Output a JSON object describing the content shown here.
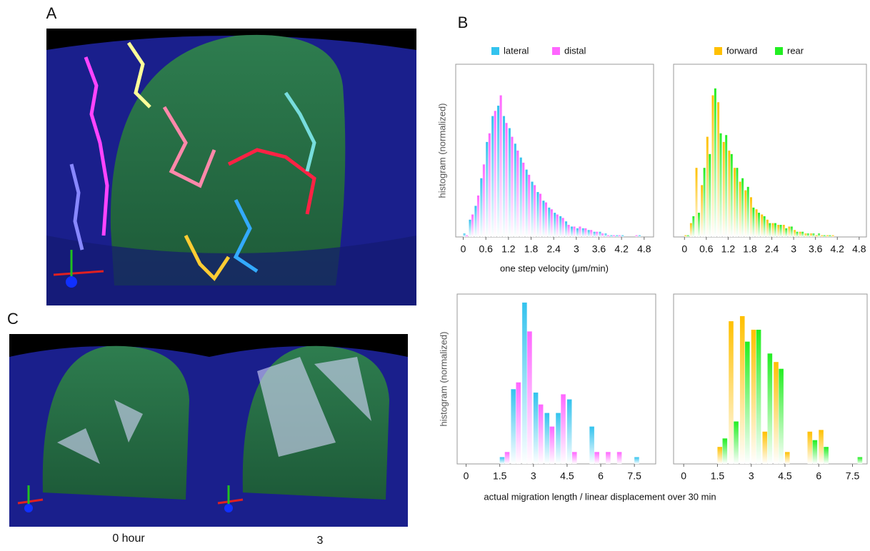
{
  "figure": {
    "panel_a": "A",
    "panel_b": "B",
    "panel_c": "C",
    "captions": [
      "0 hour",
      "3"
    ]
  },
  "chart_data": [
    {
      "type": "bar",
      "ylabel": "histogram (normalized)",
      "xlabel": "one step velocity (μm/min)",
      "x": [
        0,
        0.15,
        0.3,
        0.45,
        0.6,
        0.75,
        0.9,
        1.05,
        1.2,
        1.35,
        1.5,
        1.65,
        1.8,
        1.95,
        2.1,
        2.25,
        2.4,
        2.55,
        2.7,
        2.85,
        3,
        3.15,
        3.3,
        3.45,
        3.6,
        3.75,
        3.9,
        4.05,
        4.2,
        4.35,
        4.5,
        4.65,
        4.8
      ],
      "series": [
        {
          "name": "lateral",
          "color": "#33c3ee",
          "values": [
            2,
            10,
            18,
            34,
            55,
            70,
            76,
            70,
            63,
            54,
            46,
            39,
            32,
            26,
            21,
            17,
            14,
            12,
            9,
            6,
            5,
            5,
            4,
            3,
            3,
            2,
            1,
            1,
            1,
            0,
            0,
            1,
            0
          ]
        },
        {
          "name": "distal",
          "color": "#ff66ff",
          "values": [
            1,
            13,
            24,
            42,
            60,
            73,
            82,
            66,
            58,
            50,
            43,
            36,
            30,
            25,
            20,
            16,
            13,
            11,
            7,
            6,
            6,
            5,
            4,
            3,
            2,
            1,
            1,
            1,
            0,
            0,
            1,
            0,
            0
          ]
        }
      ],
      "xlim": [
        -0.2,
        5.05
      ],
      "xticks": [
        0,
        0.6,
        1.2,
        1.8,
        2.4,
        3,
        3.6,
        4.2,
        4.8
      ],
      "ylim": [
        0,
        100
      ]
    },
    {
      "type": "bar",
      "x": [
        0,
        0.15,
        0.3,
        0.45,
        0.6,
        0.75,
        0.9,
        1.05,
        1.2,
        1.35,
        1.5,
        1.65,
        1.8,
        1.95,
        2.1,
        2.25,
        2.4,
        2.55,
        2.7,
        2.85,
        3,
        3.15,
        3.3,
        3.45,
        3.6,
        3.75,
        3.9,
        4.05,
        4.2,
        4.35,
        4.5,
        4.65,
        4.8
      ],
      "series": [
        {
          "name": "forward",
          "color": "#ffc000",
          "values": [
            1,
            8,
            40,
            30,
            58,
            82,
            78,
            55,
            50,
            40,
            32,
            27,
            23,
            16,
            13,
            10,
            8,
            7,
            7,
            6,
            4,
            3,
            2,
            2,
            1,
            1,
            1,
            1,
            0,
            0,
            0,
            0,
            0
          ]
        },
        {
          "name": "rear",
          "color": "#22ee22",
          "values": [
            1,
            12,
            14,
            40,
            48,
            86,
            60,
            59,
            48,
            40,
            34,
            29,
            17,
            14,
            12,
            8,
            8,
            7,
            5,
            6,
            3,
            3,
            2,
            2,
            2,
            1,
            1,
            0,
            0,
            0,
            0,
            0,
            0
          ]
        }
      ],
      "xlim": [
        -0.3,
        5.0
      ],
      "xticks": [
        0,
        0.6,
        1.2,
        1.8,
        2.4,
        3,
        3.6,
        4.2,
        4.8
      ],
      "ylim": [
        0,
        100
      ]
    },
    {
      "type": "bar",
      "ylabel": "histogram (normalized)",
      "xlabel": "actual migration length / linear displacement over 30 min",
      "x": [
        1.5,
        2,
        2.5,
        3,
        3.5,
        4,
        4.5,
        5,
        5.5,
        6,
        6.5,
        7,
        7.5
      ],
      "series": [
        {
          "color": "#33c3ee",
          "values": [
            4,
            44,
            95,
            42,
            30,
            30,
            38,
            0,
            22,
            0,
            0,
            0,
            4
          ]
        },
        {
          "color": "#ff66ff",
          "values": [
            7,
            48,
            78,
            35,
            22,
            41,
            7,
            0,
            7,
            7,
            7,
            0,
            0
          ]
        }
      ],
      "xlim": [
        -0.4,
        8.45
      ],
      "xticks": [
        0,
        1.5,
        3,
        4.5,
        6,
        7.5
      ],
      "ylim": [
        0,
        100
      ]
    },
    {
      "type": "bar",
      "x": [
        1.5,
        2,
        2.5,
        3,
        3.5,
        4,
        4.5,
        5,
        5.5,
        6,
        6.5,
        7,
        7.5
      ],
      "series": [
        {
          "color": "#ffc000",
          "values": [
            10,
            84,
            87,
            79,
            19,
            60,
            7,
            0,
            19,
            20,
            0,
            0,
            0
          ]
        },
        {
          "color": "#22ee22",
          "values": [
            15,
            25,
            72,
            79,
            65,
            56,
            0,
            0,
            14,
            10,
            0,
            0,
            4
          ]
        }
      ],
      "xlim": [
        -0.45,
        8.15
      ],
      "xticks": [
        0,
        1.5,
        3,
        4.5,
        6,
        7.5
      ],
      "ylim": [
        0,
        100
      ]
    }
  ]
}
